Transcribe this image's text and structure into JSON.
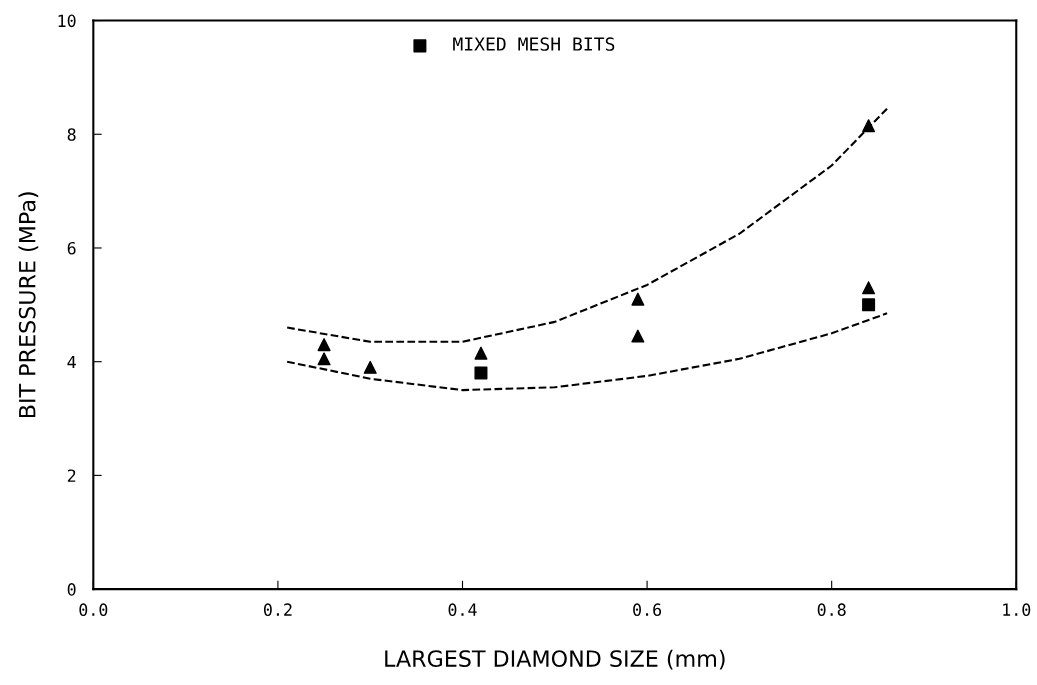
{
  "chart_data": {
    "type": "scatter",
    "xlabel": "LARGEST DIAMOND SIZE (mm)",
    "ylabel": "BIT PRESSURE (MPa)",
    "xlim": [
      0,
      1
    ],
    "ylim": [
      0,
      10
    ],
    "xticks": [
      {
        "value": 0,
        "label": "0.0"
      },
      {
        "value": 0.2,
        "label": "0.2"
      },
      {
        "value": 0.4,
        "label": "0.4"
      },
      {
        "value": 0.6,
        "label": "0.6"
      },
      {
        "value": 0.8,
        "label": "0.8"
      },
      {
        "value": 1,
        "label": "1.0"
      }
    ],
    "yticks": [
      0,
      2,
      4,
      6,
      8,
      10
    ],
    "grid": false,
    "legend": "top",
    "series": [
      {
        "marker": "triangle",
        "color": "#000000",
        "x": [
          0.25,
          0.25,
          0.3,
          0.42,
          0.59,
          0.59,
          0.84,
          0.84
        ],
        "values": [
          4.3,
          4.05,
          3.9,
          4.15,
          5.1,
          4.45,
          8.15,
          5.3
        ]
      },
      {
        "marker": "square",
        "name": "MIXED MESH BITS",
        "color": "#000000",
        "x": [
          0.42,
          0.84
        ],
        "values": [
          3.8,
          5.0
        ]
      },
      {
        "type": "line",
        "line_style": "dashed",
        "marker": "none",
        "color": "#000000",
        "x": [
          0.21,
          0.3,
          0.4,
          0.5,
          0.6,
          0.7,
          0.8,
          0.86
        ],
        "values": [
          4.6,
          4.35,
          4.35,
          4.7,
          5.35,
          6.25,
          7.45,
          8.45
        ]
      },
      {
        "type": "line",
        "line_style": "dashed",
        "marker": "none",
        "color": "#000000",
        "x": [
          0.21,
          0.3,
          0.4,
          0.5,
          0.6,
          0.7,
          0.8,
          0.86
        ],
        "values": [
          4.0,
          3.7,
          3.5,
          3.55,
          3.75,
          4.05,
          4.5,
          4.85
        ]
      }
    ]
  }
}
